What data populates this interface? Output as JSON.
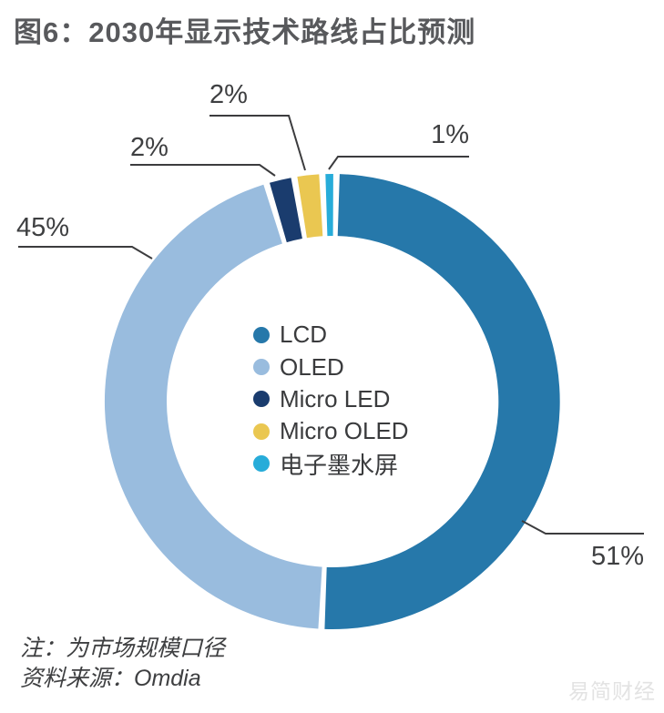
{
  "title": "图6：2030年显示技术路线占比预测",
  "note": "注：为市场规模口径",
  "source": "资料来源：Omdia",
  "watermark": "易简财经",
  "chart_data": {
    "type": "pie",
    "subtype": "donut",
    "title": "图6：2030年显示技术路线占比预测",
    "legend_position": "center",
    "clockwise": true,
    "start_angle_deg_from_top": 1,
    "series": [
      {
        "name": "LCD",
        "value": 51,
        "label": "51%",
        "color": "#2678aa"
      },
      {
        "name": "OLED",
        "value": 45,
        "label": "45%",
        "color": "#99bcde"
      },
      {
        "name": "Micro LED",
        "value": 2,
        "label": "2%",
        "color": "#1a3c6e"
      },
      {
        "name": "Micro OLED",
        "value": 2,
        "label": "2%",
        "color": "#eac751"
      },
      {
        "name": "电子墨水屏",
        "value": 1,
        "label": "1%",
        "color": "#27acd9"
      }
    ],
    "notes": [
      "注：为市场规模口径",
      "资料来源：Omdia"
    ]
  }
}
